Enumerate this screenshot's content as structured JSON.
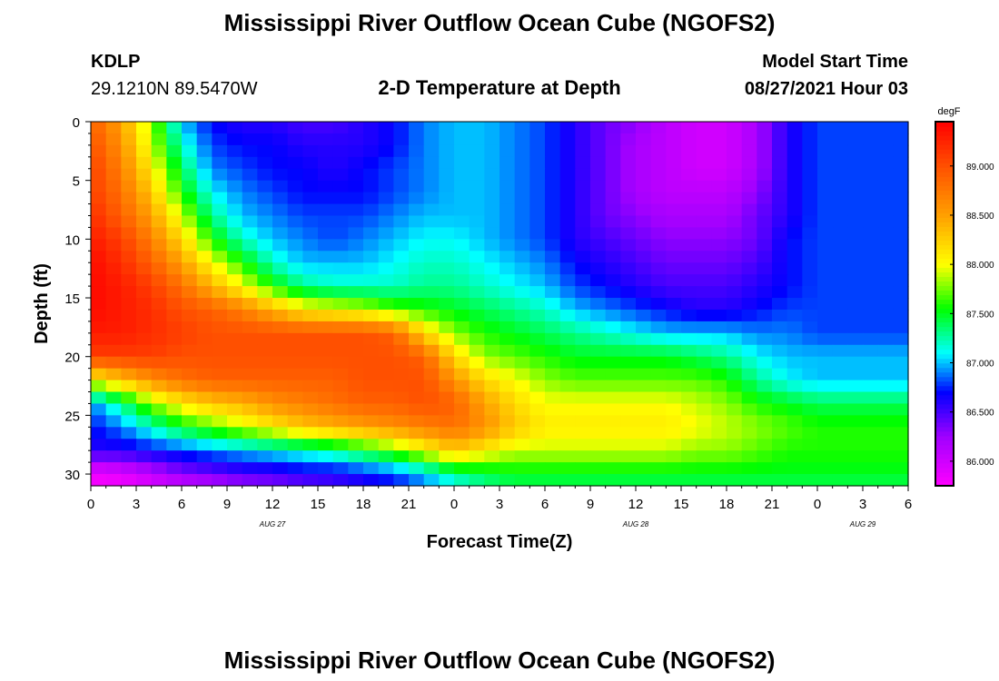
{
  "page": {
    "title": "Mississippi River Outflow Ocean Cube (NGOFS2)",
    "footer_title": "Mississippi River Outflow Ocean Cube (NGOFS2)",
    "station": {
      "id": "KDLP",
      "coords": "29.1210N  89.5470W"
    },
    "model_start": {
      "label": "Model Start Time",
      "value": "08/27/2021 Hour 03"
    }
  },
  "chart_data": {
    "type": "heatmap",
    "title": "2-D Temperature at Depth",
    "xlabel": "Forecast Time(Z)",
    "ylabel": "Depth (ft)",
    "xlim": [
      0,
      54
    ],
    "ylim": [
      0,
      31
    ],
    "x_ticks": [
      {
        "value": 0,
        "label": "0"
      },
      {
        "value": 3,
        "label": "3"
      },
      {
        "value": 6,
        "label": "6"
      },
      {
        "value": 9,
        "label": "9"
      },
      {
        "value": 12,
        "label": "12"
      },
      {
        "value": 15,
        "label": "15"
      },
      {
        "value": 18,
        "label": "18"
      },
      {
        "value": 21,
        "label": "21"
      },
      {
        "value": 24,
        "label": "0"
      },
      {
        "value": 27,
        "label": "3"
      },
      {
        "value": 30,
        "label": "6"
      },
      {
        "value": 33,
        "label": "9"
      },
      {
        "value": 36,
        "label": "12"
      },
      {
        "value": 39,
        "label": "15"
      },
      {
        "value": 42,
        "label": "18"
      },
      {
        "value": 45,
        "label": "21"
      },
      {
        "value": 48,
        "label": "0"
      },
      {
        "value": 51,
        "label": "3"
      },
      {
        "value": 54,
        "label": "6"
      }
    ],
    "date_labels": [
      {
        "value": 12,
        "label": "AUG  27"
      },
      {
        "value": 36,
        "label": "AUG  28"
      },
      {
        "value": 51,
        "label": "AUG  29"
      }
    ],
    "y_ticks": [
      {
        "value": 0,
        "label": "0"
      },
      {
        "value": 5,
        "label": "5"
      },
      {
        "value": 10,
        "label": "10"
      },
      {
        "value": 15,
        "label": "15"
      },
      {
        "value": 20,
        "label": "20"
      },
      {
        "value": 25,
        "label": "25"
      },
      {
        "value": 30,
        "label": "30"
      }
    ],
    "colorbar": {
      "unit": "degF",
      "min": 85.75,
      "max": 89.45,
      "ticks": [
        {
          "value": 86.0,
          "label": "86.000"
        },
        {
          "value": 86.5,
          "label": "86.500"
        },
        {
          "value": 87.0,
          "label": "87.000"
        },
        {
          "value": 87.5,
          "label": "87.500"
        },
        {
          "value": 88.0,
          "label": "88.000"
        },
        {
          "value": 88.5,
          "label": "88.500"
        },
        {
          "value": 89.0,
          "label": "89.000"
        }
      ]
    },
    "grid_depths": [
      0,
      2,
      4,
      6,
      8,
      10,
      12,
      14,
      16,
      18,
      20,
      22,
      24,
      26,
      28,
      30,
      31
    ],
    "grid_hours": [
      0,
      2,
      4,
      6,
      8,
      10,
      12,
      14,
      16,
      18,
      20,
      22,
      24,
      26,
      28,
      30,
      32,
      34,
      36,
      38,
      40,
      42,
      44,
      46,
      48,
      50,
      52,
      54
    ],
    "grid_values": [
      [
        88.9,
        88.5,
        87.8,
        87.0,
        86.7,
        86.6,
        86.6,
        86.5,
        86.5,
        86.6,
        86.7,
        86.9,
        87.0,
        87.0,
        86.9,
        86.8,
        86.6,
        86.4,
        86.3,
        86.1,
        86.0,
        86.0,
        86.2,
        86.6,
        86.8,
        86.8,
        86.8,
        86.8
      ],
      [
        89.0,
        88.6,
        87.9,
        87.2,
        86.8,
        86.7,
        86.7,
        86.6,
        86.6,
        86.6,
        86.7,
        86.9,
        87.0,
        87.0,
        86.9,
        86.8,
        86.6,
        86.4,
        86.2,
        86.1,
        86.0,
        86.0,
        86.2,
        86.6,
        86.8,
        86.8,
        86.8,
        86.8
      ],
      [
        89.1,
        88.7,
        88.1,
        87.4,
        86.9,
        86.8,
        86.7,
        86.7,
        86.6,
        86.7,
        86.8,
        86.9,
        87.0,
        87.0,
        86.9,
        86.8,
        86.6,
        86.4,
        86.2,
        86.1,
        86.0,
        86.0,
        86.2,
        86.6,
        86.8,
        86.8,
        86.8,
        86.8
      ],
      [
        89.1,
        88.8,
        88.3,
        87.6,
        87.1,
        86.9,
        86.8,
        86.7,
        86.7,
        86.7,
        86.8,
        86.9,
        87.0,
        87.0,
        86.9,
        86.8,
        86.6,
        86.4,
        86.2,
        86.1,
        86.1,
        86.1,
        86.3,
        86.6,
        86.8,
        86.8,
        86.8,
        86.8
      ],
      [
        89.2,
        88.9,
        88.5,
        87.9,
        87.3,
        87.0,
        86.9,
        86.8,
        86.8,
        86.8,
        86.9,
        87.0,
        87.0,
        87.0,
        86.9,
        86.8,
        86.6,
        86.4,
        86.3,
        86.2,
        86.2,
        86.2,
        86.4,
        86.6,
        86.8,
        86.8,
        86.8,
        86.8
      ],
      [
        89.3,
        89.1,
        88.7,
        88.2,
        87.6,
        87.2,
        87.0,
        86.9,
        86.8,
        86.9,
        87.0,
        87.1,
        87.1,
        87.0,
        86.9,
        86.8,
        86.6,
        86.5,
        86.4,
        86.3,
        86.3,
        86.3,
        86.4,
        86.7,
        86.8,
        86.8,
        86.8,
        86.8
      ],
      [
        89.4,
        89.2,
        88.9,
        88.5,
        88.0,
        87.6,
        87.2,
        87.0,
        87.0,
        87.0,
        87.1,
        87.2,
        87.2,
        87.1,
        87.0,
        86.9,
        86.7,
        86.6,
        86.5,
        86.4,
        86.4,
        86.4,
        86.5,
        86.7,
        86.8,
        86.8,
        86.8,
        86.8
      ],
      [
        89.4,
        89.3,
        89.1,
        88.8,
        88.4,
        88.0,
        87.6,
        87.3,
        87.2,
        87.2,
        87.2,
        87.3,
        87.3,
        87.2,
        87.1,
        87.0,
        86.8,
        86.7,
        86.6,
        86.5,
        86.5,
        86.5,
        86.6,
        86.7,
        86.8,
        86.8,
        86.8,
        86.8
      ],
      [
        89.4,
        89.3,
        89.2,
        89.0,
        88.9,
        88.7,
        88.4,
        88.1,
        88.0,
        87.9,
        87.7,
        87.6,
        87.5,
        87.4,
        87.3,
        87.2,
        87.0,
        86.9,
        86.8,
        86.7,
        86.6,
        86.6,
        86.7,
        86.8,
        86.8,
        86.8,
        86.8,
        86.8
      ],
      [
        89.3,
        89.3,
        89.2,
        89.1,
        89.0,
        89.0,
        89.0,
        89.0,
        89.0,
        89.0,
        88.9,
        88.2,
        87.8,
        87.6,
        87.5,
        87.4,
        87.3,
        87.2,
        87.1,
        87.0,
        87.0,
        87.0,
        86.9,
        86.9,
        86.8,
        86.8,
        86.8,
        86.8
      ],
      [
        89.1,
        89.1,
        89.1,
        89.0,
        89.0,
        89.0,
        89.0,
        89.0,
        89.0,
        89.0,
        89.0,
        88.9,
        88.2,
        87.8,
        87.7,
        87.6,
        87.5,
        87.5,
        87.5,
        87.5,
        87.4,
        87.3,
        87.1,
        87.0,
        87.0,
        87.0,
        87.0,
        87.0
      ],
      [
        88.0,
        88.3,
        88.6,
        88.8,
        88.9,
        88.9,
        88.9,
        88.9,
        88.9,
        89.0,
        89.0,
        89.0,
        88.6,
        88.2,
        88.0,
        87.8,
        87.7,
        87.7,
        87.7,
        87.7,
        87.7,
        87.6,
        87.3,
        87.1,
        87.0,
        87.0,
        87.0,
        87.0
      ],
      [
        86.9,
        87.3,
        87.8,
        88.1,
        88.3,
        88.4,
        88.6,
        88.7,
        88.8,
        88.9,
        88.9,
        89.0,
        88.9,
        88.5,
        88.2,
        88.0,
        88.0,
        88.0,
        88.0,
        88.0,
        87.9,
        87.8,
        87.6,
        87.5,
        87.4,
        87.4,
        87.4,
        87.4
      ],
      [
        86.7,
        86.9,
        87.2,
        87.5,
        87.7,
        87.9,
        88.1,
        88.3,
        88.4,
        88.5,
        88.6,
        88.7,
        88.8,
        88.6,
        88.3,
        88.1,
        88.1,
        88.1,
        88.1,
        88.1,
        88.0,
        87.9,
        87.8,
        87.7,
        87.6,
        87.6,
        87.6,
        87.6
      ],
      [
        86.6,
        86.6,
        86.7,
        86.8,
        86.9,
        87.0,
        87.1,
        87.2,
        87.3,
        87.5,
        87.7,
        88.0,
        88.3,
        88.1,
        87.9,
        87.9,
        87.9,
        87.9,
        87.9,
        87.9,
        87.8,
        87.8,
        87.7,
        87.6,
        87.6,
        87.6,
        87.6,
        87.6
      ],
      [
        85.8,
        85.9,
        86.1,
        86.3,
        86.4,
        86.5,
        86.5,
        86.6,
        86.6,
        86.7,
        86.8,
        87.0,
        87.3,
        87.4,
        87.5,
        87.5,
        87.5,
        87.5,
        87.5,
        87.5,
        87.5,
        87.5,
        87.5,
        87.5,
        87.5,
        87.5,
        87.5,
        87.5
      ],
      [
        85.8,
        85.8,
        85.9,
        86.0,
        86.1,
        86.2,
        86.3,
        86.4,
        86.5,
        86.6,
        86.7,
        86.9,
        87.1,
        87.3,
        87.4,
        87.4,
        87.4,
        87.4,
        87.4,
        87.4,
        87.4,
        87.4,
        87.4,
        87.4,
        87.4,
        87.4,
        87.4,
        87.4
      ]
    ]
  }
}
